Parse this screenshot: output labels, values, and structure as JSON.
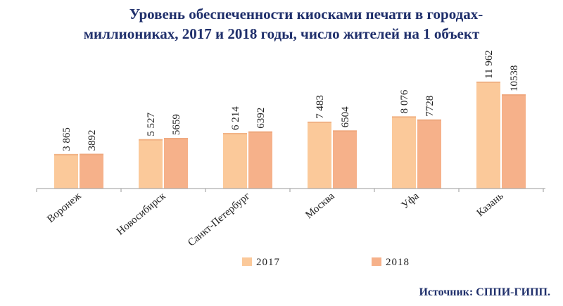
{
  "title_line1": "Уровень обеспеченности киосками печати в городах-",
  "title_line2": "миллиониках, 2017 и 2018 годы, число жителей на 1 объект",
  "source": "Источник: СППИ-ГИПП.",
  "colors": {
    "s2017": "#fbc99a",
    "s2018": "#f6b18a",
    "axis": "#9a9a9a"
  },
  "chart_data": {
    "type": "bar",
    "categories": [
      "Воронеж",
      "Новосибирск",
      "Санкт-Петербург",
      "Москва",
      "Уфа",
      "Казань"
    ],
    "series": [
      {
        "name": "2017",
        "values": [
          3865,
          5527,
          6214,
          7483,
          8076,
          11962
        ],
        "labels": [
          "3 865",
          "5 527",
          "6 214",
          "7 483",
          "8 076",
          "11 962"
        ]
      },
      {
        "name": "2018",
        "values": [
          3892,
          5659,
          6392,
          6504,
          7728,
          10538
        ],
        "labels": [
          "3892",
          "5659",
          "6392",
          "6504",
          "7728",
          "10538"
        ]
      }
    ],
    "legend_position": "bottom",
    "grid": false
  }
}
